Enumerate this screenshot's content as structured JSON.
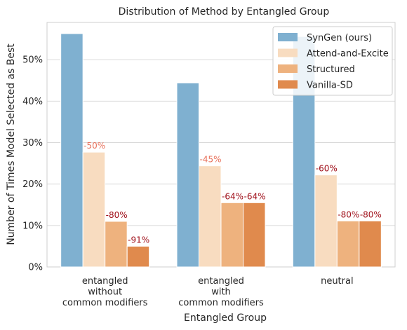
{
  "chart_data": {
    "type": "bar",
    "title": "Distribution of Method by Entangled Group",
    "xlabel": "Entangled Group",
    "ylabel": "Number of Times Model Selected as Best",
    "categories": [
      [
        "entangled",
        "without",
        "common modifiers"
      ],
      [
        "entangled",
        "with",
        "common modifiers"
      ],
      [
        "neutral"
      ]
    ],
    "ylim": [
      0,
      59
    ],
    "yticks": [
      0,
      10,
      20,
      30,
      40,
      50
    ],
    "ytick_labels": [
      "0%",
      "10%",
      "20%",
      "30%",
      "40%",
      "50%"
    ],
    "grid": true,
    "legend_position": "top-right",
    "series": [
      {
        "name": "SynGen (ours)",
        "color": "#7fb0d0",
        "values": [
          56.3,
          44.4,
          55.6
        ]
      },
      {
        "name": "Attend-and-Excite",
        "color": "#f8dcc0",
        "values": [
          27.7,
          24.4,
          22.2
        ]
      },
      {
        "name": "Structured",
        "color": "#eeb27e",
        "values": [
          11.0,
          15.5,
          11.1
        ]
      },
      {
        "name": "Vanilla-SD",
        "color": "#e08a4d",
        "values": [
          5.0,
          15.5,
          11.1
        ]
      }
    ],
    "annotations": [
      {
        "series": 1,
        "category": 0,
        "text": "-50%",
        "color": "#e8705a"
      },
      {
        "series": 2,
        "category": 0,
        "text": "-80%",
        "color": "#a0101a"
      },
      {
        "series": 3,
        "category": 0,
        "text": "-91%",
        "color": "#a0101a"
      },
      {
        "series": 1,
        "category": 1,
        "text": "-45%",
        "color": "#e8705a"
      },
      {
        "series": 2,
        "category": 1,
        "text": "-64%",
        "color": "#a0101a"
      },
      {
        "series": 3,
        "category": 1,
        "text": "-64%",
        "color": "#a0101a"
      },
      {
        "series": 1,
        "category": 2,
        "text": "-60%",
        "color": "#a0101a"
      },
      {
        "series": 2,
        "category": 2,
        "text": "-80%",
        "color": "#a0101a"
      },
      {
        "series": 3,
        "category": 2,
        "text": "-80%",
        "color": "#a0101a"
      }
    ]
  }
}
